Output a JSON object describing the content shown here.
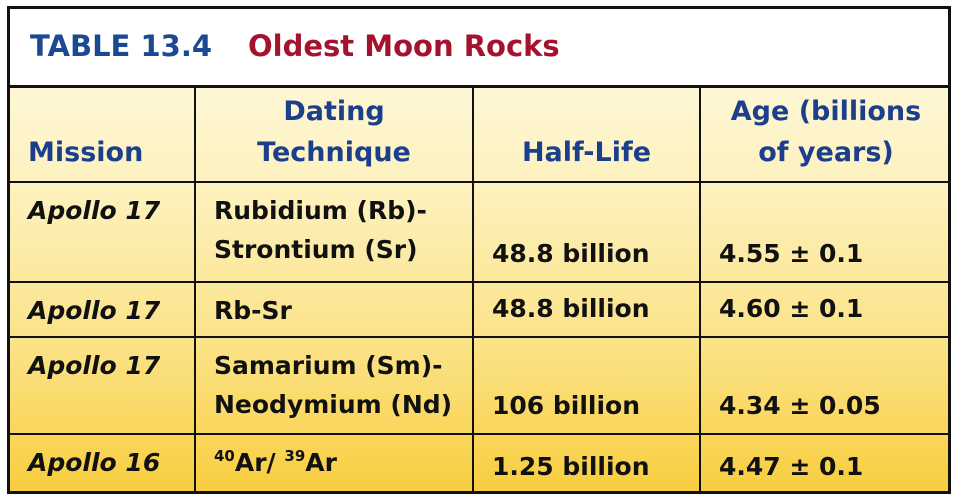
{
  "title": {
    "label": "TABLE 13.4",
    "text": "Oldest Moon Rocks"
  },
  "table": {
    "headers": [
      [
        "Mission"
      ],
      [
        "Dating",
        "Technique"
      ],
      [
        "Half-Life"
      ],
      [
        "Age (billions",
        "of years)"
      ]
    ],
    "rows": [
      [
        [
          "Apollo 17"
        ],
        [
          "Rubidium (Rb)-",
          "Strontium (Sr)"
        ],
        [
          "48.8 billion"
        ],
        [
          "4.55 ± 0.1"
        ]
      ],
      [
        [
          "Apollo 17"
        ],
        [
          "Rb-Sr"
        ],
        [
          "48.8 billion"
        ],
        [
          "4.60 ± 0.1"
        ]
      ],
      [
        [
          "Apollo 17"
        ],
        [
          "Samarium (Sm)-",
          "Neodymium (Nd)"
        ],
        [
          "106 billion"
        ],
        [
          "4.34 ± 0.05"
        ]
      ],
      [
        [
          "Apollo 16"
        ],
        [
          [
            {
              "sup": "40",
              "base": "Ar/ "
            },
            {
              "sup": "39",
              "base": "Ar"
            }
          ]
        ],
        [
          "1.25 billion"
        ],
        [
          "4.47 ± 0.1"
        ]
      ]
    ]
  }
}
